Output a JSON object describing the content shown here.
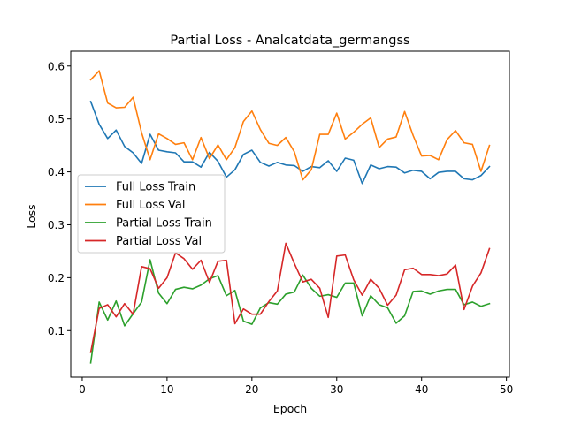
{
  "chart_data": {
    "type": "line",
    "title": "Partial Loss - Analcatdata_germangss",
    "xlabel": "Epoch",
    "ylabel": "Loss",
    "xlim": [
      -1.35,
      50.35
    ],
    "ylim": [
      0.012,
      0.628
    ],
    "xticks": [
      0,
      10,
      20,
      30,
      40,
      50
    ],
    "yticks": [
      0.1,
      0.2,
      0.3,
      0.4,
      0.5,
      0.6
    ],
    "ytick_labels": [
      "0.1",
      "0.2",
      "0.3",
      "0.4",
      "0.5",
      "0.6"
    ],
    "grid": false,
    "legend_position": "center-left",
    "x": [
      1,
      2,
      3,
      4,
      5,
      6,
      7,
      8,
      9,
      10,
      11,
      12,
      13,
      14,
      15,
      16,
      17,
      18,
      19,
      20,
      21,
      22,
      23,
      24,
      25,
      26,
      27,
      28,
      29,
      30,
      31,
      32,
      33,
      34,
      35,
      36,
      37,
      38,
      39,
      40,
      41,
      42,
      43,
      44,
      45,
      46,
      47,
      48
    ],
    "series": [
      {
        "name": "Full Loss Train",
        "color": "#1f77b4",
        "values": [
          0.533,
          0.49,
          0.463,
          0.479,
          0.448,
          0.436,
          0.416,
          0.471,
          0.441,
          0.438,
          0.436,
          0.419,
          0.419,
          0.409,
          0.437,
          0.42,
          0.39,
          0.404,
          0.433,
          0.441,
          0.418,
          0.411,
          0.418,
          0.413,
          0.412,
          0.401,
          0.41,
          0.408,
          0.421,
          0.401,
          0.426,
          0.422,
          0.378,
          0.413,
          0.406,
          0.41,
          0.409,
          0.398,
          0.403,
          0.401,
          0.387,
          0.399,
          0.401,
          0.401,
          0.387,
          0.385,
          0.393,
          0.41
        ]
      },
      {
        "name": "Full Loss Val",
        "color": "#ff7f0e",
        "values": [
          0.574,
          0.591,
          0.53,
          0.521,
          0.522,
          0.541,
          0.474,
          0.423,
          0.472,
          0.463,
          0.452,
          0.455,
          0.423,
          0.465,
          0.425,
          0.451,
          0.423,
          0.446,
          0.495,
          0.515,
          0.48,
          0.454,
          0.45,
          0.465,
          0.438,
          0.385,
          0.404,
          0.471,
          0.471,
          0.511,
          0.462,
          0.475,
          0.49,
          0.502,
          0.446,
          0.462,
          0.466,
          0.514,
          0.469,
          0.43,
          0.431,
          0.423,
          0.461,
          0.478,
          0.455,
          0.452,
          0.401,
          0.45
        ]
      },
      {
        "name": "Partial Loss Train",
        "color": "#2ca02c",
        "values": [
          0.039,
          0.154,
          0.12,
          0.156,
          0.109,
          0.132,
          0.154,
          0.234,
          0.171,
          0.151,
          0.178,
          0.182,
          0.179,
          0.186,
          0.198,
          0.204,
          0.166,
          0.176,
          0.118,
          0.112,
          0.143,
          0.153,
          0.15,
          0.169,
          0.173,
          0.205,
          0.18,
          0.165,
          0.168,
          0.163,
          0.19,
          0.19,
          0.128,
          0.166,
          0.149,
          0.143,
          0.114,
          0.128,
          0.174,
          0.175,
          0.169,
          0.175,
          0.178,
          0.178,
          0.149,
          0.154,
          0.146,
          0.151
        ]
      },
      {
        "name": "Partial Loss Val",
        "color": "#d62728",
        "values": [
          0.059,
          0.142,
          0.149,
          0.126,
          0.151,
          0.131,
          0.221,
          0.217,
          0.18,
          0.2,
          0.247,
          0.236,
          0.216,
          0.233,
          0.191,
          0.231,
          0.233,
          0.113,
          0.141,
          0.131,
          0.131,
          0.155,
          0.175,
          0.265,
          0.227,
          0.192,
          0.197,
          0.18,
          0.125,
          0.241,
          0.243,
          0.196,
          0.167,
          0.197,
          0.18,
          0.148,
          0.167,
          0.215,
          0.218,
          0.206,
          0.206,
          0.204,
          0.207,
          0.224,
          0.14,
          0.184,
          0.209,
          0.255
        ]
      }
    ]
  }
}
